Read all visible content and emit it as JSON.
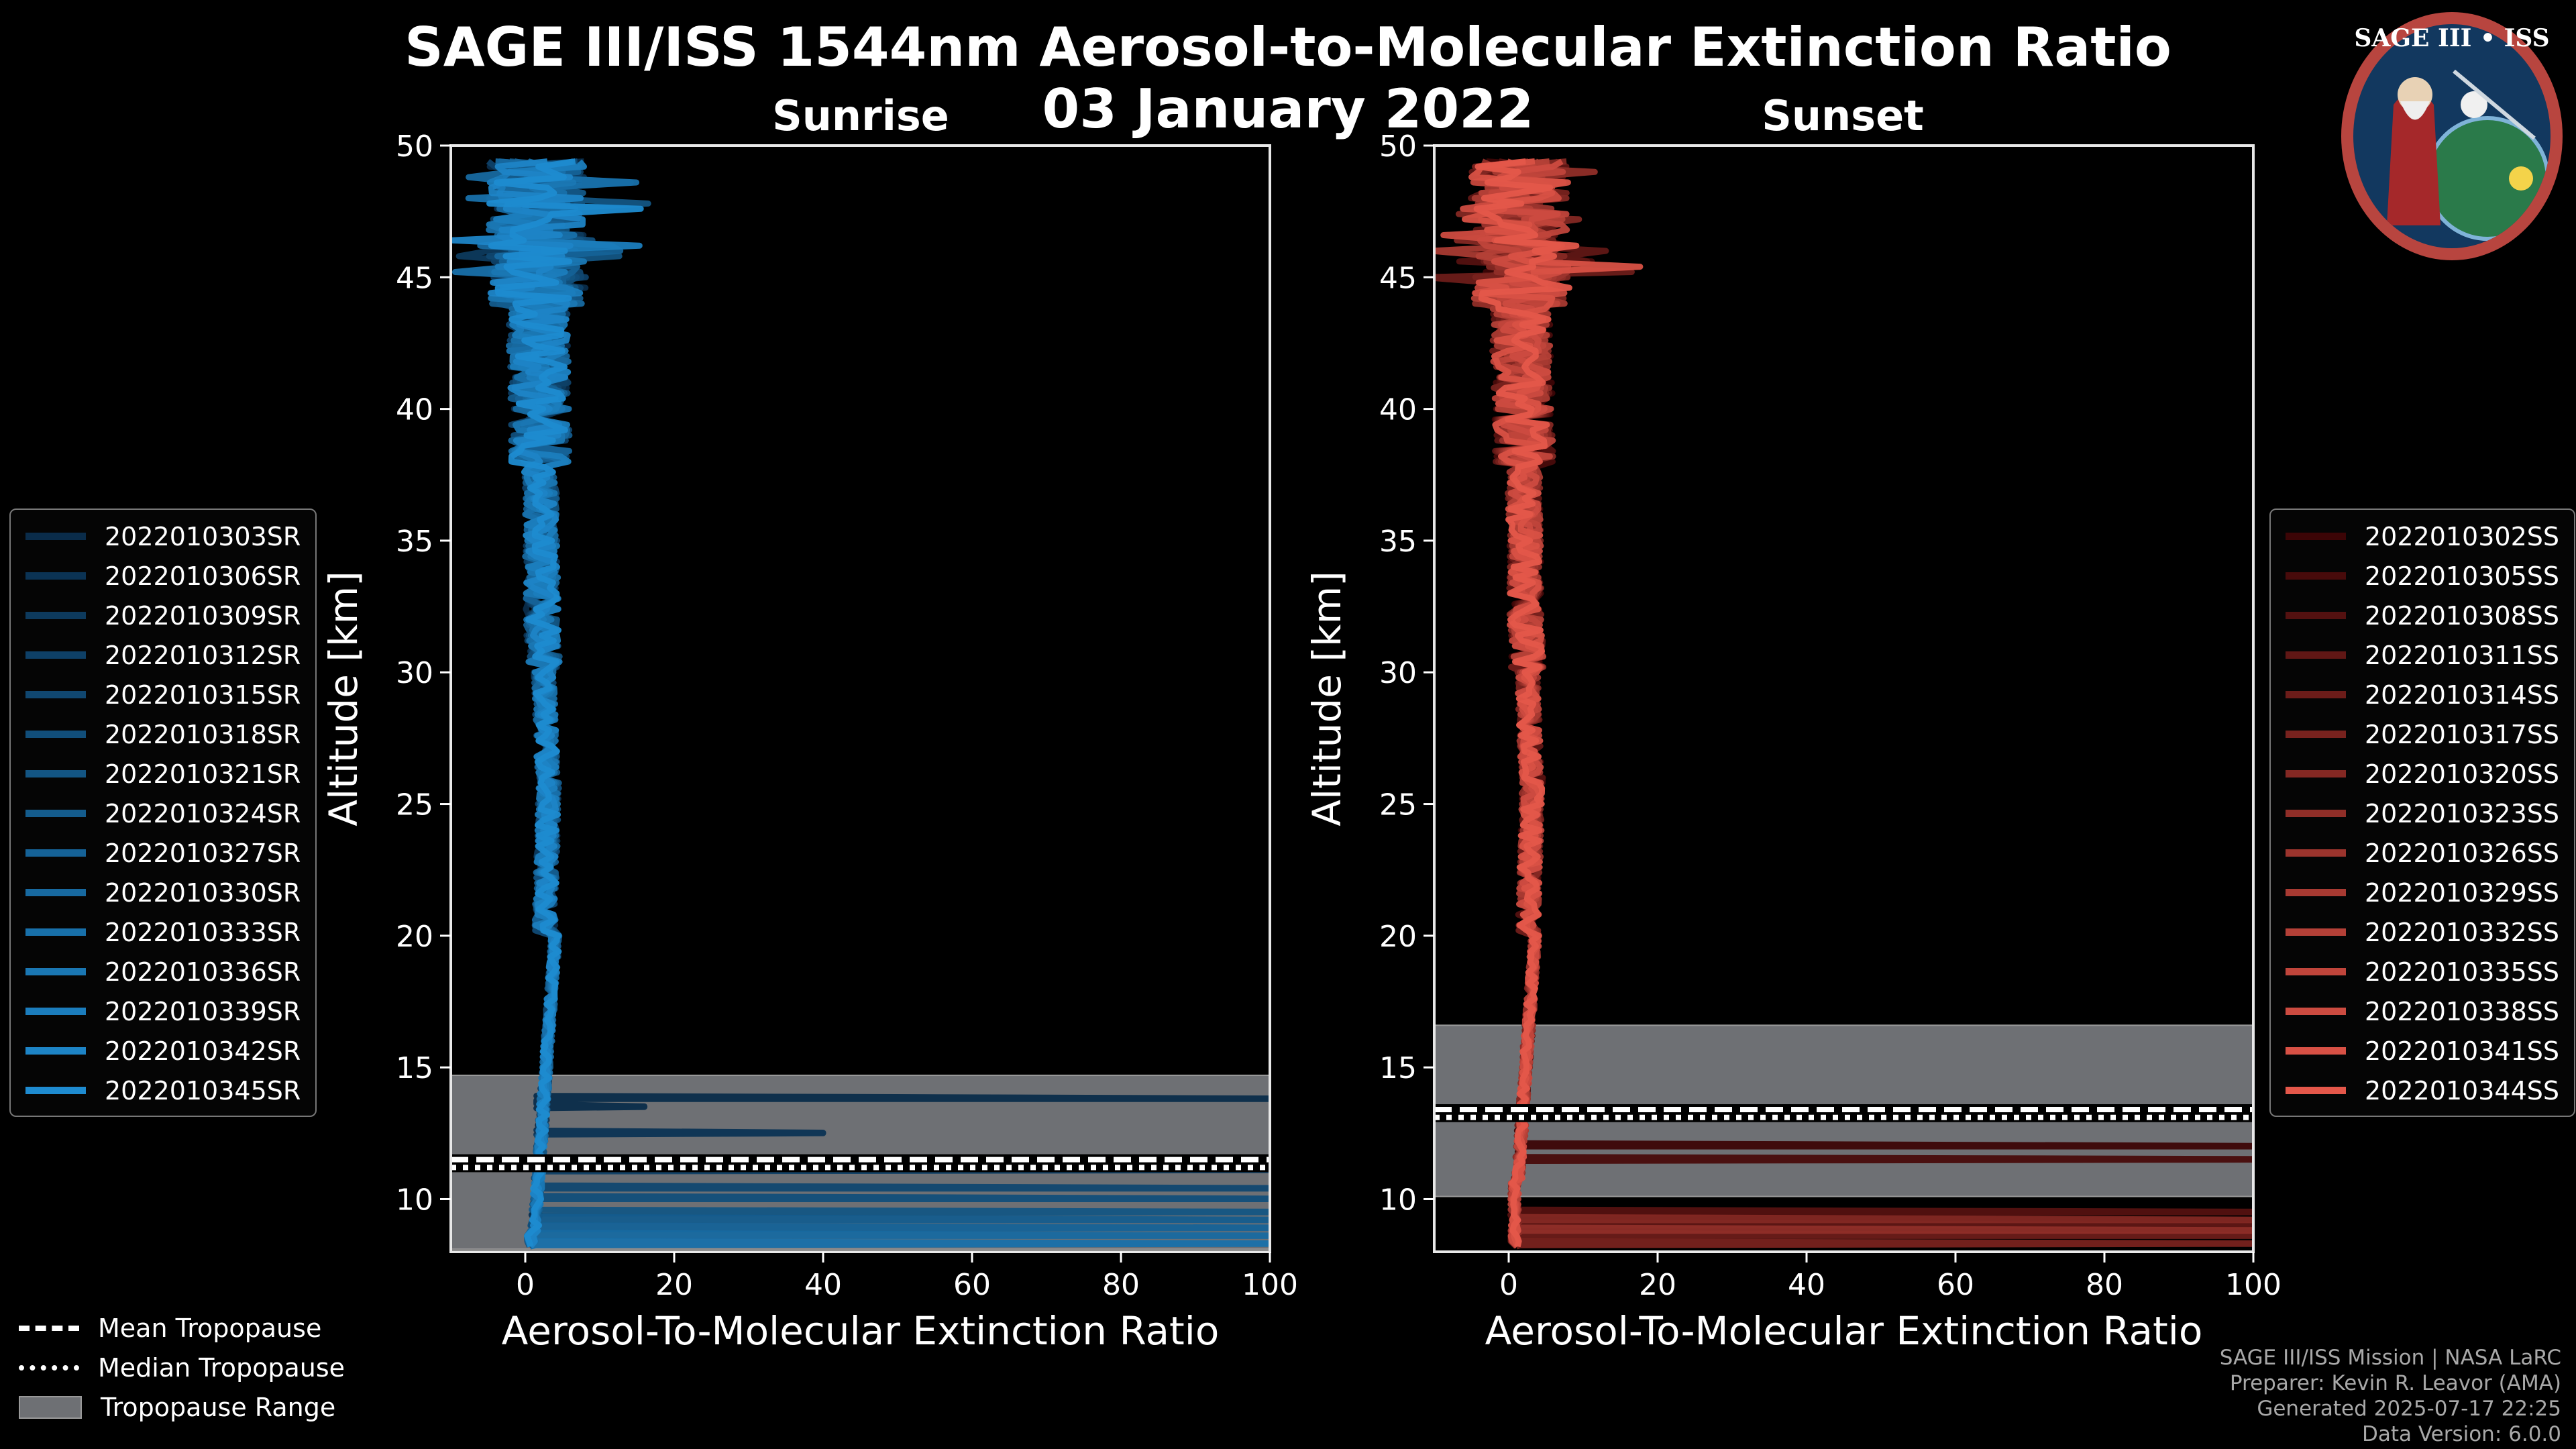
{
  "title_line1": "SAGE III/ISS 1544nm Aerosol-to-Molecular Extinction Ratio",
  "title_line2": "03 January 2022",
  "logo_text": "SAGE III • ISS",
  "colors": {
    "sunrise": "#1e8bd0",
    "sunset": "#e4574a",
    "tropopause_range": "#6e7074",
    "background": "#000000"
  },
  "chart_data": [
    {
      "type": "line",
      "panel": "Sunrise",
      "title": "Sunrise",
      "xlabel": "Aerosol-To-Molecular Extinction Ratio",
      "ylabel": "Altitude [km]",
      "xlim": [
        -10,
        100
      ],
      "ylim": [
        8,
        50
      ],
      "xticks": [
        0,
        20,
        40,
        60,
        80,
        100
      ],
      "yticks": [
        10,
        15,
        20,
        25,
        30,
        35,
        40,
        45,
        50
      ],
      "tropopause": {
        "range": [
          8.1,
          14.7
        ],
        "mean": 11.5,
        "median": 11.2
      },
      "series": [
        {
          "name": "2022010303SR",
          "spikes": [
            [
              13.8,
              100
            ],
            [
              13.5,
              16
            ]
          ]
        },
        {
          "name": "2022010306SR",
          "spikes": [
            [
              12.5,
              40
            ]
          ]
        },
        {
          "name": "2022010309SR",
          "spikes": [
            [
              11.4,
              100
            ]
          ]
        },
        {
          "name": "2022010312SR",
          "spikes": [
            [
              11.1,
              100
            ]
          ]
        },
        {
          "name": "2022010315SR",
          "spikes": [
            [
              10.4,
              100
            ]
          ]
        },
        {
          "name": "2022010318SR",
          "spikes": [
            [
              10.0,
              100
            ]
          ]
        },
        {
          "name": "2022010321SR",
          "spikes": [
            [
              9.5,
              100
            ]
          ]
        },
        {
          "name": "2022010324SR",
          "spikes": [
            [
              9.2,
              100
            ]
          ]
        },
        {
          "name": "2022010327SR",
          "spikes": [
            [
              8.9,
              100
            ]
          ]
        },
        {
          "name": "2022010330SR",
          "spikes": [
            [
              8.6,
              100
            ]
          ]
        },
        {
          "name": "2022010333SR",
          "spikes": [
            [
              8.3,
              100
            ]
          ]
        },
        {
          "name": "2022010336SR",
          "spikes": []
        },
        {
          "name": "2022010339SR",
          "spikes": []
        },
        {
          "name": "2022010342SR",
          "spikes": []
        },
        {
          "name": "2022010345SR",
          "spikes": []
        }
      ]
    },
    {
      "type": "line",
      "panel": "Sunset",
      "title": "Sunset",
      "xlabel": "Aerosol-To-Molecular Extinction Ratio",
      "ylabel": "Altitude [km]",
      "xlim": [
        -10,
        100
      ],
      "ylim": [
        8,
        50
      ],
      "xticks": [
        0,
        20,
        40,
        60,
        80,
        100
      ],
      "yticks": [
        10,
        15,
        20,
        25,
        30,
        35,
        40,
        45,
        50
      ],
      "tropopause": {
        "range": [
          10.1,
          16.6
        ],
        "mean": 13.4,
        "median": 13.1
      },
      "series": [
        {
          "name": "2022010302SS",
          "spikes": [
            [
              12.0,
              100
            ]
          ]
        },
        {
          "name": "2022010305SS",
          "spikes": [
            [
              11.5,
              100
            ]
          ]
        },
        {
          "name": "2022010308SS",
          "spikes": [
            [
              9.5,
              100
            ]
          ]
        },
        {
          "name": "2022010311SS",
          "spikes": [
            [
              9.0,
              100
            ]
          ]
        },
        {
          "name": "2022010314SS",
          "spikes": [
            [
              8.6,
              100
            ]
          ]
        },
        {
          "name": "2022010317SS",
          "spikes": [
            [
              8.3,
              100
            ]
          ]
        },
        {
          "name": "2022010320SS",
          "spikes": [
            [
              9.2,
              100
            ]
          ]
        },
        {
          "name": "2022010323SS",
          "spikes": [
            [
              8.8,
              100
            ]
          ]
        },
        {
          "name": "2022010326SS",
          "spikes": []
        },
        {
          "name": "2022010329SS",
          "spikes": []
        },
        {
          "name": "2022010332SS",
          "spikes": []
        },
        {
          "name": "2022010335SS",
          "spikes": []
        },
        {
          "name": "2022010338SS",
          "spikes": []
        },
        {
          "name": "2022010341SS",
          "spikes": []
        },
        {
          "name": "2022010344SS",
          "spikes": []
        }
      ]
    }
  ],
  "legend_bottom": {
    "mean": "Mean Tropopause",
    "median": "Median Tropopause",
    "range": "Tropopause Range"
  },
  "credits": [
    "SAGE III/ISS Mission | NASA LaRC",
    "Preparer: Kevin R. Leavor (AMA)",
    "Generated 2025-07-17 22:25",
    "Data Version: 6.0.0"
  ]
}
